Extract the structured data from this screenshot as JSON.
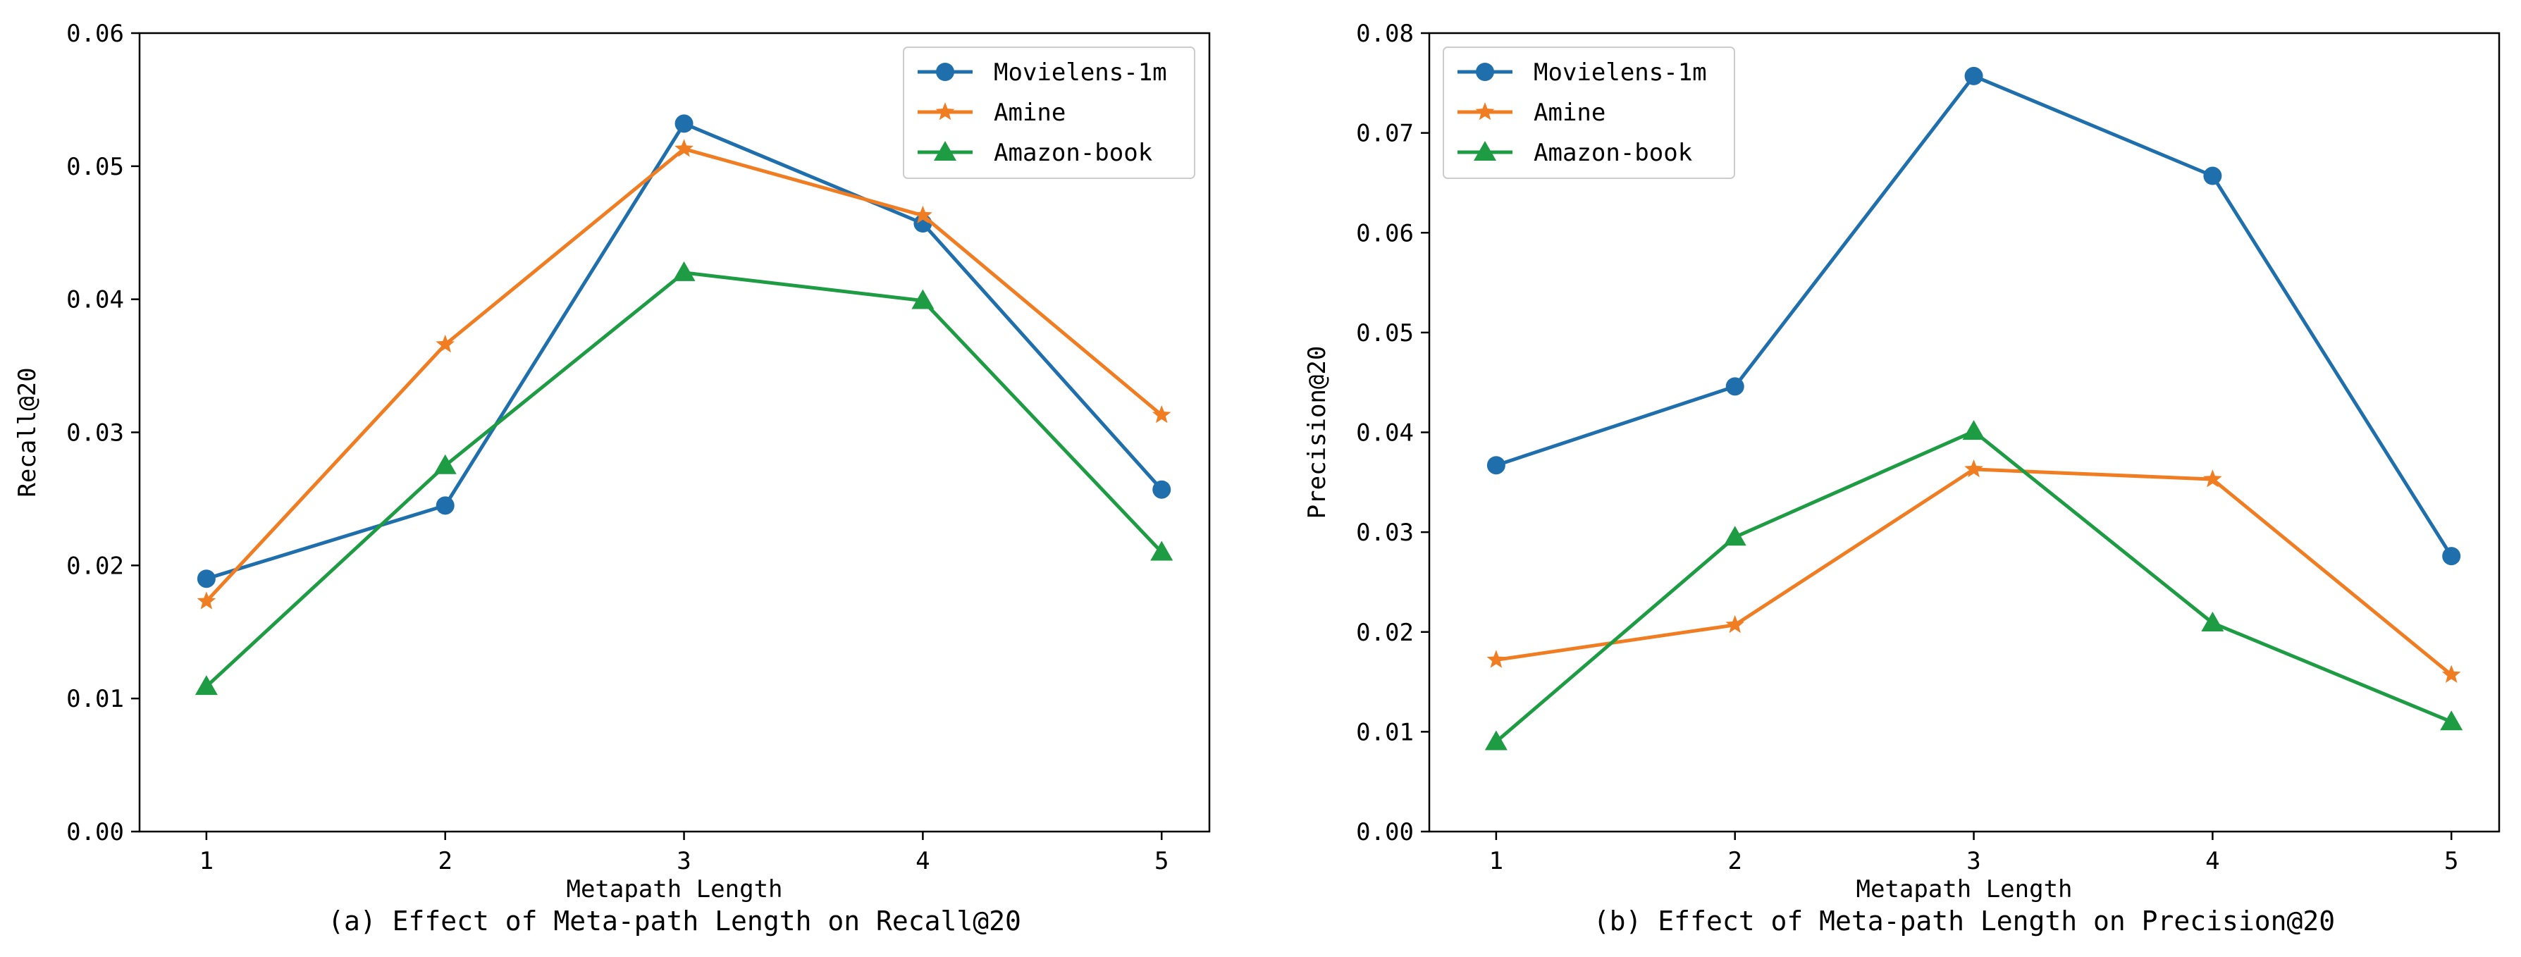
{
  "chart_data": [
    {
      "type": "line",
      "id": "a",
      "caption": "(a) Effect of Meta-path Length on Recall@20",
      "xlabel": "Metapath Length",
      "ylabel": "Recall@20",
      "x": [
        1,
        2,
        3,
        4,
        5
      ],
      "xticks": [
        "1",
        "2",
        "3",
        "4",
        "5"
      ],
      "ylim": [
        0,
        0.06
      ],
      "yticks": [
        "0.00",
        "0.01",
        "0.02",
        "0.03",
        "0.04",
        "0.05",
        "0.06"
      ],
      "legend_position": "top-right",
      "series": [
        {
          "name": "Movielens-1m",
          "marker": "circle",
          "color": "#1f6fad",
          "values": [
            0.019,
            0.0245,
            0.0532,
            0.0457,
            0.0257
          ]
        },
        {
          "name": "Amine",
          "marker": "star",
          "color": "#f07d22",
          "values": [
            0.0173,
            0.0366,
            0.0513,
            0.0463,
            0.0313
          ]
        },
        {
          "name": "Amazon-book",
          "marker": "triangle",
          "color": "#1e9c44",
          "values": [
            0.0109,
            0.0275,
            0.042,
            0.0399,
            0.021
          ]
        }
      ]
    },
    {
      "type": "line",
      "id": "b",
      "caption": "(b) Effect of Meta-path Length on Precision@20",
      "xlabel": "Metapath Length",
      "ylabel": "Precision@20",
      "x": [
        1,
        2,
        3,
        4,
        5
      ],
      "xticks": [
        "1",
        "2",
        "3",
        "4",
        "5"
      ],
      "ylim": [
        0,
        0.08
      ],
      "yticks": [
        "0.00",
        "0.01",
        "0.02",
        "0.03",
        "0.04",
        "0.05",
        "0.06",
        "0.07",
        "0.08"
      ],
      "legend_position": "top-left",
      "series": [
        {
          "name": "Movielens-1m",
          "marker": "circle",
          "color": "#1f6fad",
          "values": [
            0.0367,
            0.0446,
            0.0757,
            0.0657,
            0.0276
          ]
        },
        {
          "name": "Amine",
          "marker": "star",
          "color": "#f07d22",
          "values": [
            0.0172,
            0.0207,
            0.0363,
            0.0353,
            0.0157
          ]
        },
        {
          "name": "Amazon-book",
          "marker": "triangle",
          "color": "#1e9c44",
          "values": [
            0.009,
            0.0295,
            0.0401,
            0.0209,
            0.011
          ]
        }
      ]
    }
  ]
}
